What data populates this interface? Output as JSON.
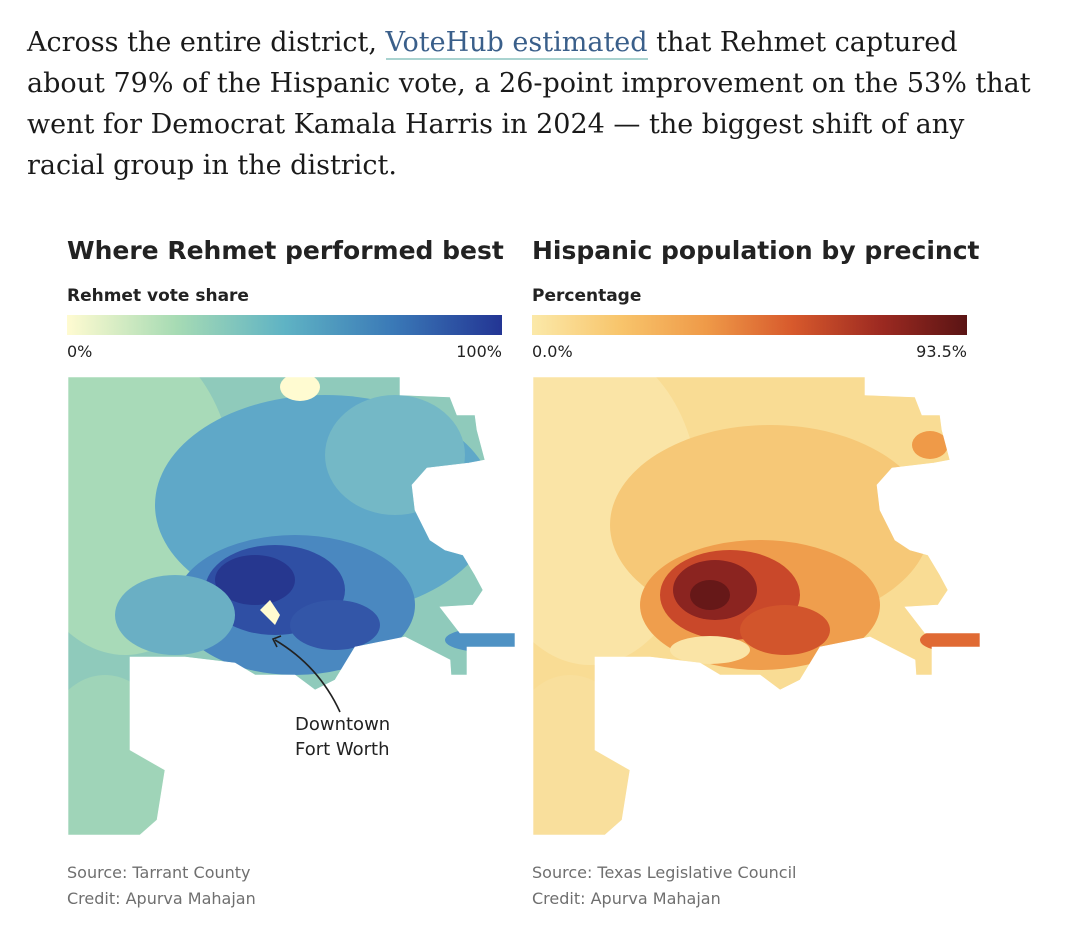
{
  "article": {
    "text_before": "Across the entire district, ",
    "link_text": "VoteHub estimated",
    "text_after": " that Rehmet captured about 79% of the Hispanic vote, a 26-point improvement on the 53% that went for Democrat Kamala Harris in 2024 — the biggest shift of any racial group in the district."
  },
  "maps": [
    {
      "title": "Where Rehmet performed best",
      "legend_title": "Rehmet vote share",
      "legend_min": "0%",
      "legend_max": "100%",
      "colors": [
        "#fffbd1",
        "#a7dbb4",
        "#5fb3c4",
        "#3a79b7",
        "#233594"
      ],
      "annotation": [
        "Downtown",
        "Fort Worth"
      ],
      "source": "Source: Tarrant County",
      "credit": "Credit: Apurva Mahajan"
    },
    {
      "title": "Hispanic population by precinct",
      "legend_title": "Percentage",
      "legend_min": "0.0%",
      "legend_max": "93.5%",
      "colors": [
        "#fbe9a9",
        "#f8c56c",
        "#ef9a48",
        "#d7592c",
        "#9d2a21",
        "#5a1414"
      ],
      "source": "Source: Texas Legislative Council",
      "credit": "Credit: Apurva Mahajan"
    }
  ]
}
